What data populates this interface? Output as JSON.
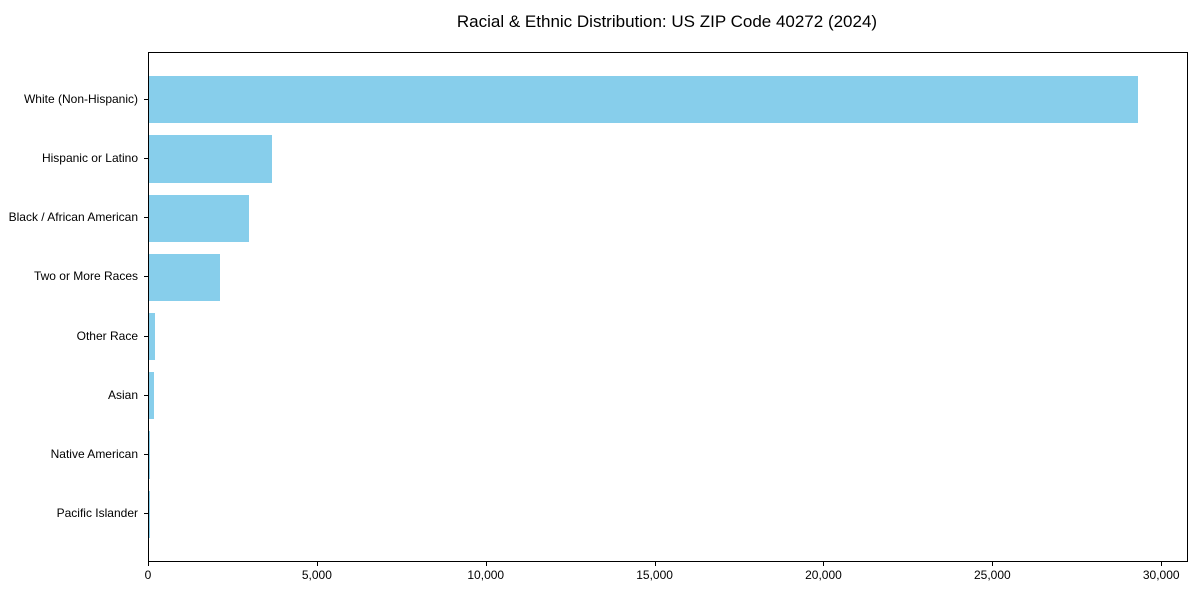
{
  "figure": {
    "background": "#ffffff"
  },
  "chart_data": {
    "type": "bar",
    "orientation": "horizontal",
    "title": "Racial & Ethnic Distribution: US ZIP Code 40272 (2024)",
    "categories": [
      "White (Non-Hispanic)",
      "Hispanic or Latino",
      "Black / African American",
      "Two or More Races",
      "Other Race",
      "Asian",
      "Native American",
      "Pacific Islander"
    ],
    "values": [
      29270,
      3630,
      2960,
      2090,
      190,
      150,
      40,
      15
    ],
    "xlabel": "",
    "ylabel": "",
    "xlim": [
      0,
      30734
    ],
    "x_ticks": [
      0,
      5000,
      10000,
      15000,
      20000,
      25000,
      30000
    ],
    "x_tick_labels": [
      "0",
      "5,000",
      "10,000",
      "15,000",
      "20,000",
      "25,000",
      "30,000"
    ],
    "grid": false,
    "legend": false,
    "bar_color": "#87CEEB",
    "axis_color": "#000000",
    "text_color": "#000000"
  }
}
